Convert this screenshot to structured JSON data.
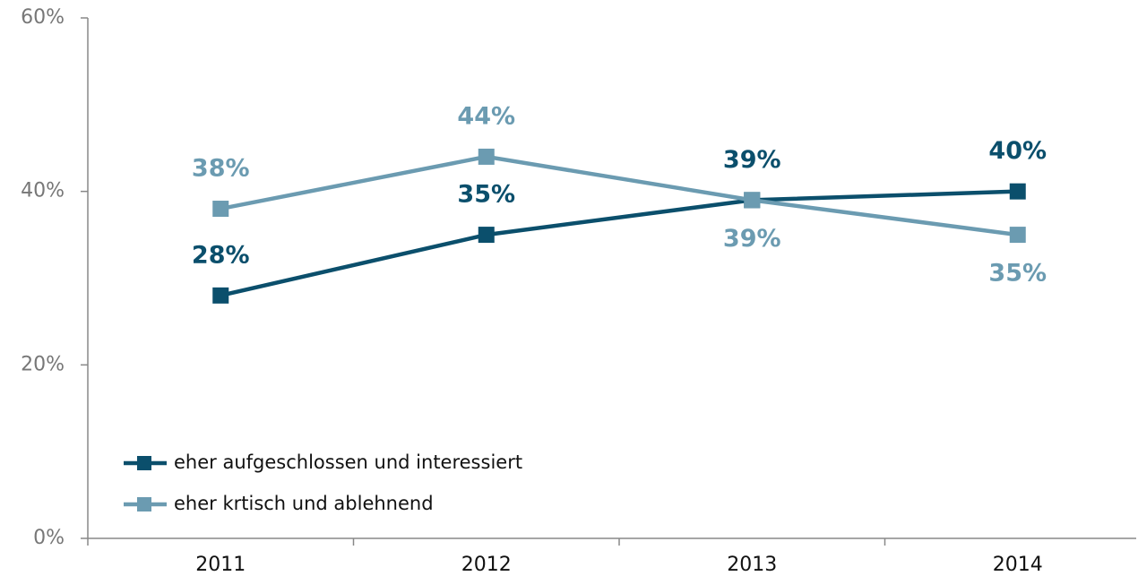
{
  "chart_data": {
    "type": "line",
    "categories": [
      "2011",
      "2012",
      "2013",
      "2014"
    ],
    "series": [
      {
        "name": "eher aufgeschlossen und interessiert",
        "color": "#0b4f6c",
        "values": [
          28,
          35,
          39,
          40
        ],
        "value_labels": [
          "28%",
          "35%",
          "39%",
          "40%"
        ]
      },
      {
        "name": "eher krtisch und ablehnend",
        "color": "#6b9bb1",
        "values": [
          38,
          44,
          39,
          35
        ],
        "value_labels": [
          "38%",
          "44%",
          "39%",
          "35%"
        ]
      }
    ],
    "ylim": [
      0,
      60
    ],
    "yticks": [
      {
        "value": 0,
        "label": "0%"
      },
      {
        "value": 20,
        "label": "20%"
      },
      {
        "value": 40,
        "label": "40%"
      },
      {
        "value": 60,
        "label": "60%"
      }
    ],
    "grid": false,
    "legend": "lower left"
  }
}
